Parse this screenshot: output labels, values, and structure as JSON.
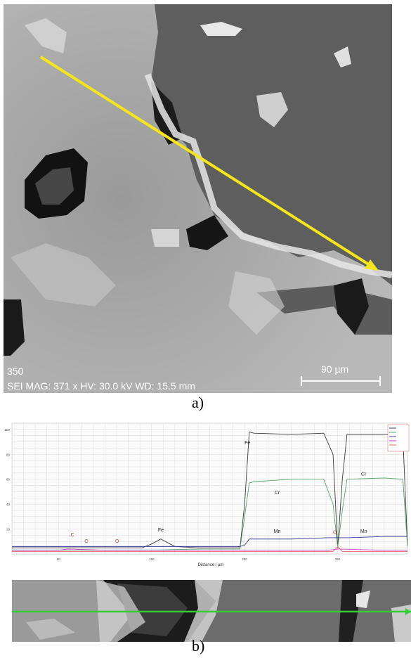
{
  "panel_a": {
    "info_label": "350",
    "info_line": "SEI MAG: 371 x  HV: 30.0 kV  WD: 15.5 mm",
    "scale_label": "90 µm",
    "caption": "a)"
  },
  "panel_b": {
    "caption": "b)"
  },
  "chart_data": {
    "type": "line",
    "title": "",
    "xlabel": "Distance / µm",
    "ylabel": "",
    "xlim": [
      0,
      425
    ],
    "ylim": [
      0,
      105
    ],
    "x_ticks": [
      50,
      150,
      250,
      350
    ],
    "x_tick_labels": [
      "50",
      "150",
      "250",
      "350"
    ],
    "y_ticks": [
      20,
      40,
      60,
      80,
      100
    ],
    "y_tick_labels": [
      "20",
      "40",
      "60",
      "80",
      "100"
    ],
    "grid": true,
    "legend": "top-right",
    "colors": {
      "Fe": "#3a3a3a",
      "Cr": "#5aa36a",
      "Mn": "#3b3f9a",
      "C": "#c040c0",
      "O": "#e06a6a",
      "other": "#7a7ad8"
    },
    "series": [
      {
        "name": "Fe",
        "x": [
          0,
          50,
          100,
          140,
          150,
          160,
          175,
          200,
          230,
          245,
          250,
          255,
          260,
          300,
          335,
          345,
          350,
          355,
          360,
          400,
          420,
          425
        ],
        "y": [
          5,
          5,
          5,
          5,
          8,
          12,
          6,
          5,
          5,
          5,
          40,
          98,
          97,
          96,
          97,
          80,
          5,
          60,
          96,
          96,
          95,
          7
        ]
      },
      {
        "name": "Cr",
        "x": [
          0,
          50,
          100,
          150,
          200,
          245,
          250,
          255,
          260,
          300,
          335,
          345,
          350,
          355,
          360,
          400,
          420,
          425
        ],
        "y": [
          3,
          3,
          3,
          3,
          4,
          4,
          30,
          57,
          58,
          60,
          60,
          40,
          5,
          35,
          60,
          61,
          60,
          6
        ]
      },
      {
        "name": "Mn",
        "x": [
          0,
          50,
          100,
          150,
          200,
          245,
          250,
          255,
          260,
          300,
          340,
          350,
          360,
          400,
          425
        ],
        "y": [
          6,
          6,
          6,
          6,
          6,
          6,
          7,
          12,
          12,
          12,
          13,
          13,
          13,
          14,
          14
        ]
      },
      {
        "name": "C",
        "x": [
          0,
          50,
          60,
          100,
          150,
          250,
          300,
          340,
          350,
          400,
          425
        ],
        "y": [
          3,
          3,
          4,
          3,
          3,
          3,
          3,
          3,
          4,
          3,
          3
        ]
      },
      {
        "name": "O",
        "x": [
          0,
          50,
          100,
          150,
          250,
          300,
          345,
          350,
          355,
          400,
          425
        ],
        "y": [
          2,
          2,
          2,
          2,
          2,
          2,
          2,
          6,
          2,
          2,
          2
        ]
      }
    ],
    "annotations": [
      {
        "text": "Fe",
        "x": 253,
        "y": 88,
        "color": "#222222"
      },
      {
        "text": "Cr",
        "x": 285,
        "y": 48,
        "color": "#222222"
      },
      {
        "text": "Cr",
        "x": 378,
        "y": 63,
        "color": "#222222"
      },
      {
        "text": "Fe",
        "x": 160,
        "y": 18,
        "color": "#222222"
      },
      {
        "text": "Mn",
        "x": 285,
        "y": 17,
        "color": "#222222"
      },
      {
        "text": "Mn",
        "x": 378,
        "y": 17,
        "color": "#222222"
      },
      {
        "text": "C",
        "x": 65,
        "y": 14,
        "color": "#d04040"
      },
      {
        "text": "O",
        "x": 80,
        "y": 9,
        "color": "#d04040"
      },
      {
        "text": "O",
        "x": 113,
        "y": 9,
        "color": "#d04040"
      },
      {
        "text": "O",
        "x": 347,
        "y": 16,
        "color": "#d04040"
      }
    ]
  }
}
